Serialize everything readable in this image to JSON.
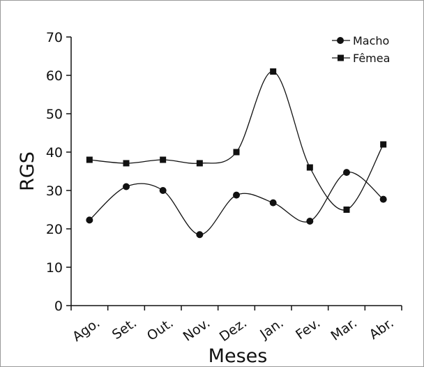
{
  "chart_data": {
    "type": "line",
    "title": "",
    "xlabel": "Meses",
    "ylabel": "RGS",
    "categories": [
      "Ago.",
      "Set.",
      "Out.",
      "Nov.",
      "Dez.",
      "Jan.",
      "Fev.",
      "Mar.",
      "Abr."
    ],
    "ylim": [
      0,
      70
    ],
    "yticks": [
      0,
      10,
      20,
      30,
      40,
      50,
      60,
      70
    ],
    "grid": false,
    "legend_position": "top-right",
    "series": [
      {
        "name": "Macho",
        "marker": "circle",
        "color": "#111111",
        "values": [
          22.3,
          31.0,
          30.0,
          18.5,
          28.8,
          26.8,
          22.0,
          34.7,
          27.7
        ]
      },
      {
        "name": "Fêmea",
        "marker": "square",
        "color": "#111111",
        "values": [
          38.0,
          37.1,
          38.0,
          37.1,
          40.0,
          61.0,
          36.0,
          25.0,
          42.0
        ]
      }
    ]
  }
}
